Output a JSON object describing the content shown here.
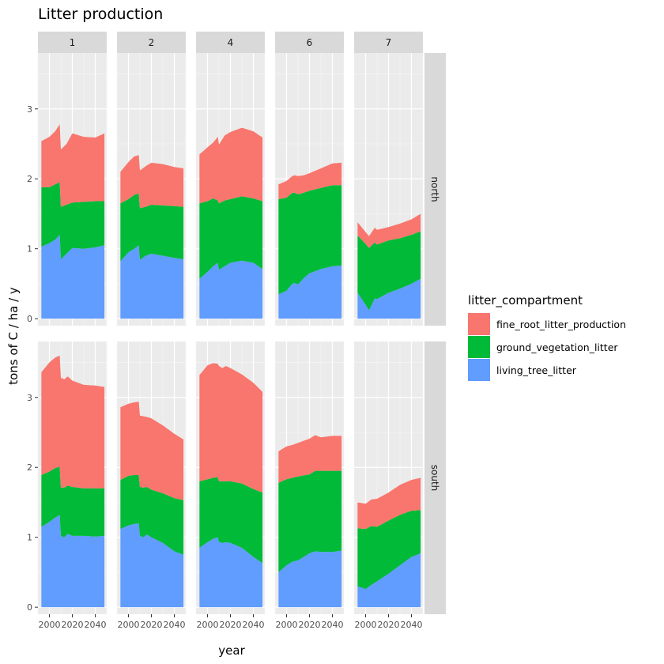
{
  "title": "Litter production",
  "xlabel": "year",
  "ylabel": "tons of C / ha / y",
  "legend": {
    "title": "litter_compartment",
    "entries": [
      {
        "label": "fine_root_litter_production",
        "color": "#F8766D"
      },
      {
        "label": "ground_vegetation_litter",
        "color": "#00BA38"
      },
      {
        "label": "living_tree_litter",
        "color": "#619CFF"
      }
    ]
  },
  "panel_bg": "#EBEBEB",
  "strip_bg": "#D9D9D9",
  "chart_data": {
    "type": "area",
    "stacked": true,
    "facet_cols": [
      "1",
      "2",
      "4",
      "6",
      "7"
    ],
    "facet_rows": [
      "north",
      "south"
    ],
    "xlim": [
      1990,
      2050
    ],
    "ylim": [
      -0.1,
      3.8
    ],
    "xticks": [
      2000,
      2020,
      2040
    ],
    "xtick_labels": [
      "2000",
      "2020",
      "2040"
    ],
    "yticks": [
      0,
      1,
      2,
      3
    ],
    "ytick_labels": [
      "0",
      "1",
      "2",
      "3"
    ],
    "grid": true,
    "legend_position": "right",
    "series_order": [
      "living_tree_litter",
      "ground_vegetation_litter",
      "fine_root_litter_production"
    ],
    "panels": [
      {
        "col": "1",
        "row": "north",
        "x": [
          1993,
          2000,
          2005,
          2009,
          2010,
          2015,
          2020,
          2030,
          2040,
          2048
        ],
        "living_tree_litter": [
          1.03,
          1.08,
          1.13,
          1.2,
          0.85,
          0.93,
          1.01,
          1.0,
          1.02,
          1.05
        ],
        "ground_vegetation_litter": [
          0.85,
          0.8,
          0.79,
          0.75,
          0.75,
          0.7,
          0.65,
          0.67,
          0.66,
          0.63
        ],
        "fine_root_litter_production": [
          0.66,
          0.72,
          0.76,
          0.83,
          0.82,
          0.87,
          0.99,
          0.93,
          0.91,
          0.97
        ]
      },
      {
        "col": "2",
        "row": "north",
        "x": [
          1993,
          2000,
          2005,
          2009,
          2010,
          2015,
          2020,
          2030,
          2040,
          2048
        ],
        "living_tree_litter": [
          0.82,
          0.95,
          1.0,
          1.05,
          0.84,
          0.9,
          0.93,
          0.9,
          0.87,
          0.85
        ],
        "ground_vegetation_litter": [
          0.83,
          0.76,
          0.77,
          0.74,
          0.74,
          0.7,
          0.7,
          0.72,
          0.74,
          0.75
        ],
        "fine_root_litter_production": [
          0.45,
          0.53,
          0.55,
          0.55,
          0.54,
          0.58,
          0.6,
          0.59,
          0.56,
          0.55
        ]
      },
      {
        "col": "4",
        "row": "north",
        "x": [
          1993,
          2000,
          2005,
          2009,
          2010,
          2015,
          2020,
          2030,
          2040,
          2048
        ],
        "living_tree_litter": [
          0.57,
          0.67,
          0.75,
          0.8,
          0.7,
          0.75,
          0.8,
          0.83,
          0.8,
          0.71
        ],
        "ground_vegetation_litter": [
          1.08,
          1.01,
          0.97,
          0.89,
          0.95,
          0.94,
          0.91,
          0.92,
          0.92,
          0.97
        ],
        "fine_root_litter_production": [
          0.7,
          0.77,
          0.8,
          0.91,
          0.84,
          0.93,
          0.96,
          0.98,
          0.96,
          0.91
        ]
      },
      {
        "col": "6",
        "row": "north",
        "x": [
          1993,
          2000,
          2005,
          2007,
          2010,
          2015,
          2020,
          2030,
          2040,
          2048
        ],
        "living_tree_litter": [
          0.35,
          0.4,
          0.5,
          0.51,
          0.49,
          0.58,
          0.65,
          0.71,
          0.75,
          0.76
        ],
        "ground_vegetation_litter": [
          1.36,
          1.33,
          1.3,
          1.29,
          1.29,
          1.22,
          1.18,
          1.16,
          1.16,
          1.15
        ],
        "fine_root_litter_production": [
          0.21,
          0.24,
          0.24,
          0.25,
          0.26,
          0.25,
          0.25,
          0.28,
          0.31,
          0.32
        ]
      },
      {
        "col": "7",
        "row": "north",
        "x": [
          1993,
          2000,
          2003,
          2008,
          2010,
          2020,
          2030,
          2040,
          2048
        ],
        "living_tree_litter": [
          0.37,
          0.2,
          0.12,
          0.29,
          0.28,
          0.37,
          0.43,
          0.5,
          0.57
        ],
        "ground_vegetation_litter": [
          0.82,
          0.87,
          0.89,
          0.8,
          0.78,
          0.75,
          0.72,
          0.7,
          0.68
        ],
        "fine_root_litter_production": [
          0.19,
          0.17,
          0.17,
          0.21,
          0.21,
          0.19,
          0.21,
          0.22,
          0.25
        ]
      },
      {
        "col": "1",
        "row": "south",
        "x": [
          1993,
          2000,
          2005,
          2009,
          2010,
          2013,
          2016,
          2020,
          2030,
          2040,
          2048
        ],
        "living_tree_litter": [
          1.15,
          1.22,
          1.28,
          1.32,
          1.02,
          1.0,
          1.05,
          1.02,
          1.02,
          1.01,
          1.02
        ],
        "ground_vegetation_litter": [
          0.74,
          0.72,
          0.71,
          0.69,
          0.69,
          0.71,
          0.69,
          0.7,
          0.68,
          0.69,
          0.68
        ],
        "fine_root_litter_production": [
          1.47,
          1.56,
          1.58,
          1.59,
          1.57,
          1.55,
          1.56,
          1.52,
          1.48,
          1.47,
          1.45
        ]
      },
      {
        "col": "2",
        "row": "south",
        "x": [
          1993,
          2000,
          2005,
          2009,
          2010,
          2013,
          2016,
          2020,
          2030,
          2040,
          2048
        ],
        "living_tree_litter": [
          1.12,
          1.17,
          1.19,
          1.2,
          1.02,
          1.0,
          1.04,
          1.0,
          0.92,
          0.8,
          0.75
        ],
        "ground_vegetation_litter": [
          0.7,
          0.71,
          0.7,
          0.69,
          0.7,
          0.71,
          0.68,
          0.68,
          0.71,
          0.76,
          0.78
        ],
        "fine_root_litter_production": [
          1.04,
          1.03,
          1.04,
          1.05,
          1.02,
          1.02,
          1.0,
          1.02,
          0.97,
          0.92,
          0.87
        ]
      },
      {
        "col": "4",
        "row": "south",
        "x": [
          1993,
          2000,
          2005,
          2009,
          2010,
          2013,
          2016,
          2020,
          2030,
          2040,
          2048
        ],
        "living_tree_litter": [
          0.85,
          0.93,
          0.98,
          1.0,
          0.93,
          0.92,
          0.93,
          0.92,
          0.85,
          0.72,
          0.63
        ],
        "ground_vegetation_litter": [
          0.95,
          0.9,
          0.87,
          0.86,
          0.87,
          0.88,
          0.87,
          0.88,
          0.92,
          0.97,
          1.01
        ],
        "fine_root_litter_production": [
          1.52,
          1.63,
          1.64,
          1.62,
          1.65,
          1.62,
          1.65,
          1.62,
          1.56,
          1.52,
          1.44
        ]
      },
      {
        "col": "6",
        "row": "south",
        "x": [
          1993,
          2000,
          2005,
          2010,
          2020,
          2025,
          2030,
          2040,
          2048
        ],
        "living_tree_litter": [
          0.5,
          0.6,
          0.65,
          0.67,
          0.77,
          0.8,
          0.79,
          0.79,
          0.81
        ],
        "ground_vegetation_litter": [
          1.28,
          1.23,
          1.2,
          1.2,
          1.13,
          1.15,
          1.16,
          1.16,
          1.14
        ],
        "fine_root_litter_production": [
          0.45,
          0.47,
          0.47,
          0.48,
          0.51,
          0.51,
          0.48,
          0.5,
          0.5
        ]
      },
      {
        "col": "7",
        "row": "south",
        "x": [
          1993,
          2000,
          2005,
          2010,
          2020,
          2030,
          2040,
          2048
        ],
        "living_tree_litter": [
          0.3,
          0.26,
          0.32,
          0.37,
          0.48,
          0.6,
          0.72,
          0.77
        ],
        "ground_vegetation_litter": [
          0.83,
          0.86,
          0.84,
          0.78,
          0.76,
          0.72,
          0.66,
          0.62
        ],
        "fine_root_litter_production": [
          0.37,
          0.36,
          0.38,
          0.4,
          0.4,
          0.43,
          0.44,
          0.46
        ]
      }
    ]
  }
}
